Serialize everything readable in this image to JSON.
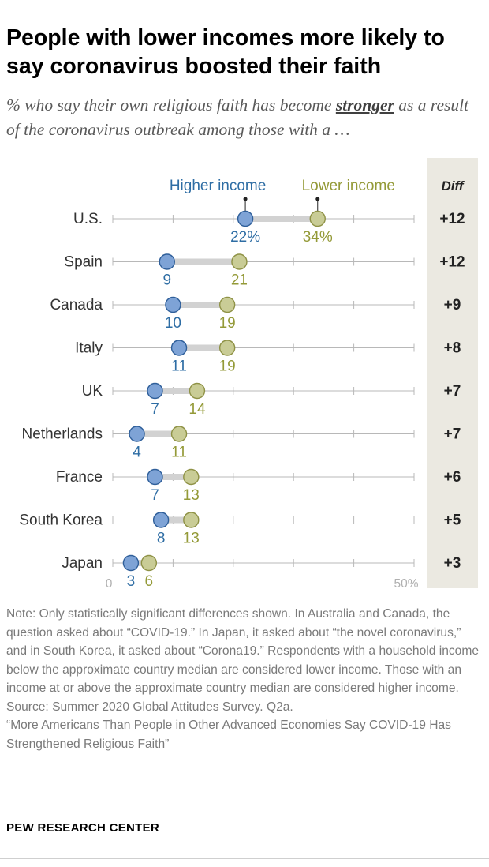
{
  "title": "People with lower incomes more likely to say coronavirus boosted their faith",
  "subtitle": {
    "before": "% who say their own religious faith has become ",
    "emphasis": "stronger",
    "after": " as a result of the coronavirus outbreak among those with a …"
  },
  "chart_data": {
    "type": "dot",
    "legend": [
      "Higher income",
      "Lower income"
    ],
    "diff_header": "Diff",
    "axis_labels": [
      "0",
      "50%"
    ],
    "xlim": [
      0,
      50
    ],
    "categories": [
      "U.S.",
      "Spain",
      "Canada",
      "Italy",
      "UK",
      "Netherlands",
      "France",
      "South Korea",
      "Japan"
    ],
    "series": [
      {
        "name": "Higher income",
        "values": [
          22,
          9,
          10,
          11,
          7,
          4,
          7,
          8,
          3
        ],
        "labels": [
          "22%",
          "9",
          "10",
          "11",
          "7",
          "4",
          "7",
          "8",
          "3"
        ]
      },
      {
        "name": "Lower income",
        "values": [
          34,
          21,
          19,
          19,
          14,
          11,
          13,
          13,
          6
        ],
        "labels": [
          "34%",
          "21",
          "19",
          "19",
          "14",
          "11",
          "13",
          "13",
          "6"
        ]
      }
    ],
    "diff": [
      "+12",
      "+12",
      "+9",
      "+8",
      "+7",
      "+7",
      "+6",
      "+5",
      "+3"
    ],
    "colors": {
      "higher": "#7ea3d6",
      "higher_stroke": "#2f5f9a",
      "higher_text": "#2e6da4",
      "lower": "#c9cc96",
      "lower_stroke": "#8f9246",
      "lower_text": "#949a38",
      "connector": "#d2d2d2",
      "diff_panel": "#ebe9e1"
    }
  },
  "notes": [
    "Note: Only statistically significant differences shown. In Australia and Canada, the question asked about “COVID-19.” In Japan, it asked about “the novel coronavirus,” and in South Korea, it asked about “Corona19.” Respondents with a household income below the approximate country median are considered lower income. Those with an income at or above the approximate country median are considered higher income.",
    "Source: Summer 2020 Global Attitudes Survey. Q2a.",
    "“More Americans Than People in Other Advanced Economies Say COVID-19 Has Strengthened Religious Faith”"
  ],
  "brand": "PEW RESEARCH CENTER"
}
